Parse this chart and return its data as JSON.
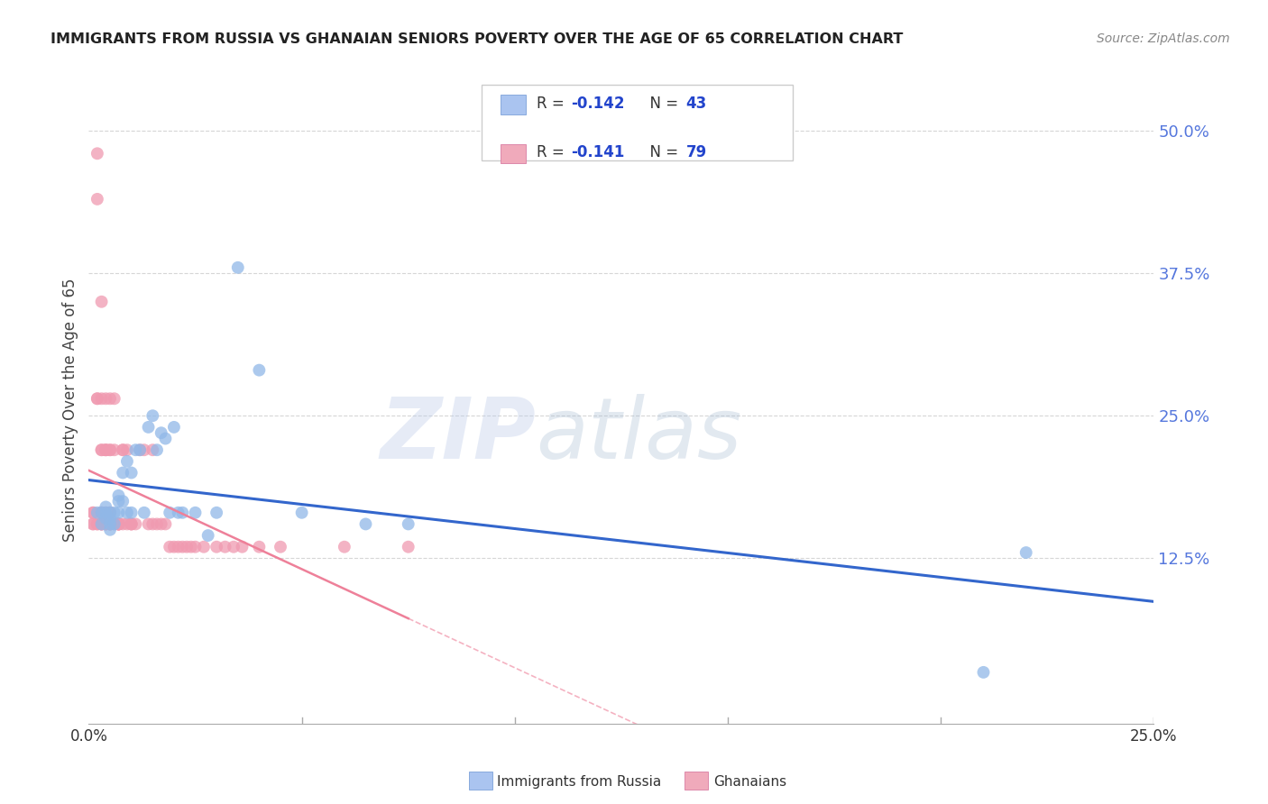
{
  "title": "IMMIGRANTS FROM RUSSIA VS GHANAIAN SENIORS POVERTY OVER THE AGE OF 65 CORRELATION CHART",
  "source": "Source: ZipAtlas.com",
  "ylabel": "Seniors Poverty Over the Age of 65",
  "y_tick_labels": [
    "12.5%",
    "25.0%",
    "37.5%",
    "50.0%"
  ],
  "y_tick_values": [
    0.125,
    0.25,
    0.375,
    0.5
  ],
  "watermark": "ZIPatlas",
  "russia_color": "#90b8e8",
  "ghana_color": "#f09ab0",
  "russia_line_color": "#3366cc",
  "ghana_line_color": "#ee8099",
  "xmin": 0.0,
  "xmax": 0.25,
  "ymin": -0.02,
  "ymax": 0.53,
  "background_color": "#ffffff",
  "grid_color": "#cccccc",
  "russia_x": [
    0.002,
    0.003,
    0.003,
    0.004,
    0.004,
    0.004,
    0.005,
    0.005,
    0.005,
    0.005,
    0.006,
    0.006,
    0.007,
    0.007,
    0.007,
    0.008,
    0.008,
    0.009,
    0.009,
    0.01,
    0.01,
    0.011,
    0.012,
    0.013,
    0.014,
    0.015,
    0.016,
    0.017,
    0.018,
    0.019,
    0.02,
    0.021,
    0.022,
    0.025,
    0.028,
    0.03,
    0.035,
    0.04,
    0.05,
    0.065,
    0.075,
    0.21,
    0.22
  ],
  "russia_y": [
    0.165,
    0.165,
    0.155,
    0.17,
    0.165,
    0.16,
    0.165,
    0.16,
    0.155,
    0.15,
    0.165,
    0.155,
    0.165,
    0.18,
    0.175,
    0.2,
    0.175,
    0.165,
    0.21,
    0.165,
    0.2,
    0.22,
    0.22,
    0.165,
    0.24,
    0.25,
    0.22,
    0.235,
    0.23,
    0.165,
    0.24,
    0.165,
    0.165,
    0.165,
    0.145,
    0.165,
    0.38,
    0.29,
    0.165,
    0.155,
    0.155,
    0.025,
    0.13
  ],
  "ghana_x": [
    0.001,
    0.001,
    0.001,
    0.001,
    0.002,
    0.002,
    0.002,
    0.002,
    0.002,
    0.002,
    0.003,
    0.003,
    0.003,
    0.003,
    0.003,
    0.003,
    0.003,
    0.003,
    0.003,
    0.003,
    0.004,
    0.004,
    0.004,
    0.004,
    0.004,
    0.004,
    0.004,
    0.004,
    0.005,
    0.005,
    0.005,
    0.005,
    0.005,
    0.005,
    0.005,
    0.005,
    0.005,
    0.006,
    0.006,
    0.006,
    0.007,
    0.007,
    0.007,
    0.007,
    0.007,
    0.007,
    0.008,
    0.008,
    0.008,
    0.009,
    0.009,
    0.01,
    0.01,
    0.01,
    0.011,
    0.012,
    0.013,
    0.014,
    0.015,
    0.015,
    0.016,
    0.017,
    0.018,
    0.019,
    0.02,
    0.021,
    0.022,
    0.023,
    0.024,
    0.025,
    0.027,
    0.03,
    0.032,
    0.034,
    0.036,
    0.04,
    0.045,
    0.06,
    0.075
  ],
  "ghana_y": [
    0.165,
    0.165,
    0.155,
    0.155,
    0.48,
    0.44,
    0.265,
    0.265,
    0.155,
    0.155,
    0.35,
    0.265,
    0.22,
    0.22,
    0.165,
    0.165,
    0.155,
    0.155,
    0.155,
    0.155,
    0.265,
    0.22,
    0.22,
    0.22,
    0.165,
    0.155,
    0.155,
    0.155,
    0.265,
    0.22,
    0.22,
    0.165,
    0.165,
    0.155,
    0.155,
    0.155,
    0.155,
    0.22,
    0.265,
    0.155,
    0.155,
    0.155,
    0.155,
    0.155,
    0.155,
    0.155,
    0.22,
    0.22,
    0.155,
    0.22,
    0.155,
    0.155,
    0.155,
    0.155,
    0.155,
    0.22,
    0.22,
    0.155,
    0.155,
    0.22,
    0.155,
    0.155,
    0.155,
    0.135,
    0.135,
    0.135,
    0.135,
    0.135,
    0.135,
    0.135,
    0.135,
    0.135,
    0.135,
    0.135,
    0.135,
    0.135,
    0.135,
    0.135,
    0.135
  ]
}
